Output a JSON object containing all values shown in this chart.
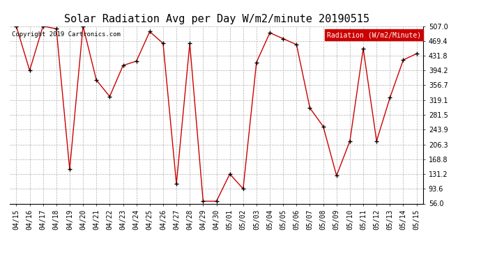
{
  "title": "Solar Radiation Avg per Day W/m2/minute 20190515",
  "copyright": "Copyright 2019 Cartronics.com",
  "legend_label": "Radiation (W/m2/Minute)",
  "dates": [
    "04/15",
    "04/16",
    "04/17",
    "04/18",
    "04/19",
    "04/20",
    "04/21",
    "04/22",
    "04/23",
    "04/24",
    "04/25",
    "04/26",
    "04/27",
    "04/28",
    "04/29",
    "04/30",
    "05/01",
    "05/02",
    "05/03",
    "05/04",
    "05/05",
    "05/06",
    "05/07",
    "05/08",
    "05/09",
    "05/10",
    "05/11",
    "05/12",
    "05/13",
    "05/14",
    "05/15"
  ],
  "values": [
    507.0,
    394.2,
    507.0,
    500.0,
    143.0,
    507.0,
    370.0,
    328.0,
    407.0,
    418.0,
    493.0,
    463.0,
    106.0,
    463.0,
    62.0,
    62.0,
    131.2,
    93.6,
    415.0,
    490.0,
    475.0,
    460.0,
    299.0,
    252.0,
    127.0,
    215.0,
    450.0,
    215.0,
    325.0,
    421.0,
    437.0
  ],
  "line_color": "#cc0000",
  "marker_color": "#000000",
  "bg_color": "#ffffff",
  "grid_color": "#b0b0b0",
  "ylim": [
    56.0,
    507.0
  ],
  "yticks": [
    56.0,
    93.6,
    131.2,
    168.8,
    206.3,
    243.9,
    281.5,
    319.1,
    356.7,
    394.2,
    431.8,
    469.4,
    507.0
  ],
  "title_fontsize": 11,
  "tick_fontsize": 7,
  "legend_bg": "#cc0000",
  "legend_fg": "#ffffff"
}
